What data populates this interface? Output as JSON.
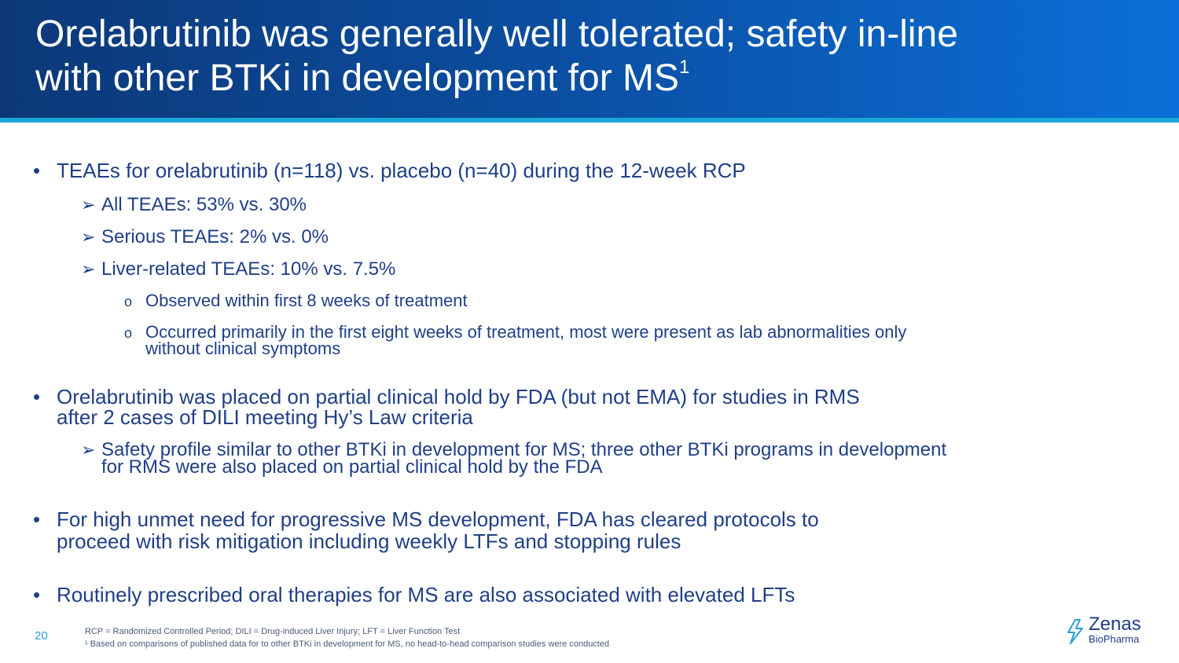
{
  "slide": {
    "title_line1": "Orelabrutinib was generally well tolerated; safety in-line",
    "title_line2": "with other BTKi in development for MS",
    "title_sup": "1",
    "page_number": "20"
  },
  "body": {
    "b1": "TEAEs for orelabrutinib (n=118) vs. placebo (n=40) during the 12-week RCP",
    "b1_s1": "All TEAEs: 53% vs. 30%",
    "b1_s2": "Serious TEAEs: 2% vs. 0%",
    "b1_s3": "Liver-related TEAEs: 10% vs. 7.5%",
    "b1_s3_t1": "Observed within first 8 weeks of treatment",
    "b1_s3_t2_line1": "Occurred primarily in the first eight weeks of treatment, most were present as lab abnormalities only",
    "b1_s3_t2_line2": "without clinical symptoms",
    "b2_line1": "Orelabrutinib was placed on partial clinical hold by FDA (but not EMA) for studies in RMS",
    "b2_line2": "after 2 cases of DILI meeting Hy’s Law criteria",
    "b2_s1_line1": "Safety profile similar to other BTKi in development for MS; three other BTKi programs in development",
    "b2_s1_line2": "for RMS were also placed on partial clinical hold by the FDA",
    "b3_line1": "For high unmet need for progressive MS development, FDA has cleared protocols to",
    "b3_line2": "proceed with risk mitigation including weekly LTFs and stopping rules",
    "b4": "Routinely prescribed oral therapies for MS are also associated with elevated LFTs"
  },
  "footnotes": {
    "f1": "RCP = Randomized Controlled Period; DILI = Drug-induced Liver Injury; LFT = Liver Function Test",
    "f2": "¹ Based on comparisons of published data for to other BTKi in development for MS, no head-to-head comparison studies were conducted"
  },
  "logo": {
    "name": "Zenas",
    "sub": "BioPharma"
  },
  "colors": {
    "header_dark": "#0c3878",
    "header_light": "#0b6fd9",
    "stripe": "#1aa8d8",
    "text": "#1f3f86",
    "page_number": "#2a9fd6"
  }
}
